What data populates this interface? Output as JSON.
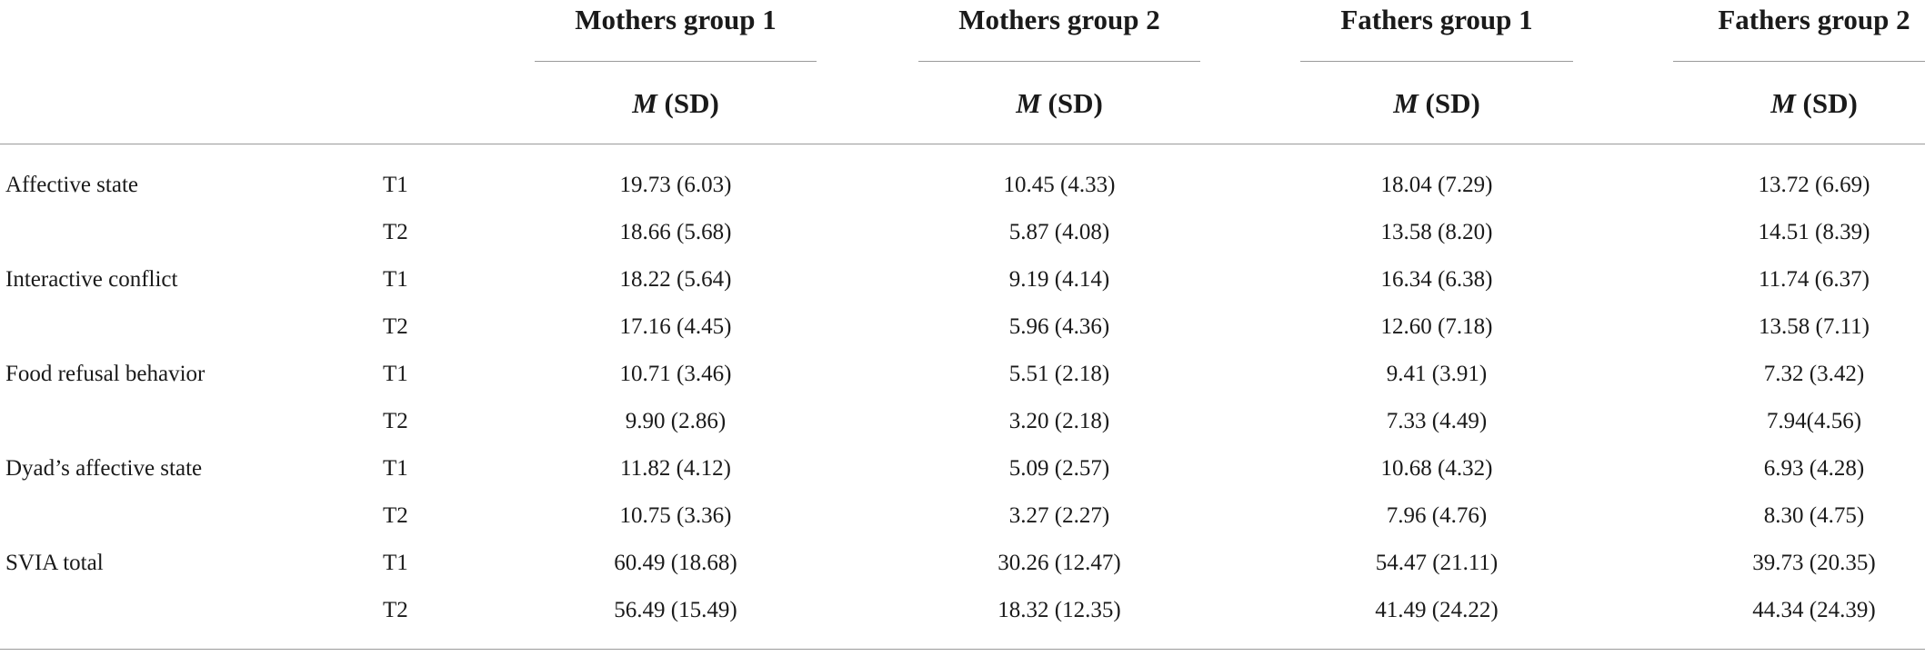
{
  "table": {
    "groups": [
      {
        "title": "Mothers group 1",
        "stat_italic": "M",
        "stat_rest": " (SD)"
      },
      {
        "title": "Mothers group 2",
        "stat_italic": "M",
        "stat_rest": " (SD)"
      },
      {
        "title": "Fathers group 1",
        "stat_italic": "M",
        "stat_rest": " (SD)"
      },
      {
        "title": "Fathers group 2",
        "stat_italic": "M",
        "stat_rest": " (SD)"
      }
    ],
    "rows": [
      {
        "label": "Affective state",
        "time": "T1",
        "values": [
          "19.73 (6.03)",
          "10.45 (4.33)",
          "18.04 (7.29)",
          "13.72 (6.69)"
        ]
      },
      {
        "label": "",
        "time": "T2",
        "values": [
          "18.66 (5.68)",
          "5.87 (4.08)",
          "13.58 (8.20)",
          "14.51 (8.39)"
        ]
      },
      {
        "label": "Interactive conflict",
        "time": "T1",
        "values": [
          "18.22 (5.64)",
          "9.19 (4.14)",
          "16.34 (6.38)",
          "11.74 (6.37)"
        ]
      },
      {
        "label": "",
        "time": "T2",
        "values": [
          "17.16 (4.45)",
          "5.96 (4.36)",
          "12.60 (7.18)",
          "13.58 (7.11)"
        ]
      },
      {
        "label": "Food refusal behavior",
        "time": "T1",
        "values": [
          "10.71 (3.46)",
          "5.51 (2.18)",
          "9.41 (3.91)",
          "7.32 (3.42)"
        ]
      },
      {
        "label": "",
        "time": "T2",
        "values": [
          "9.90 (2.86)",
          "3.20 (2.18)",
          "7.33 (4.49)",
          "7.94(4.56)"
        ]
      },
      {
        "label": "Dyad’s affective state",
        "time": "T1",
        "values": [
          "11.82 (4.12)",
          "5.09 (2.57)",
          "10.68 (4.32)",
          "6.93 (4.28)"
        ]
      },
      {
        "label": "",
        "time": "T2",
        "values": [
          "10.75 (3.36)",
          "3.27 (2.27)",
          "7.96 (4.76)",
          "8.30 (4.75)"
        ]
      },
      {
        "label": "SVIA total",
        "time": "T1",
        "values": [
          "60.49 (18.68)",
          "30.26 (12.47)",
          "54.47 (21.11)",
          "39.73 (20.35)"
        ]
      },
      {
        "label": "",
        "time": "T2",
        "values": [
          "56.49 (15.49)",
          "18.32 (12.35)",
          "41.49 (24.22)",
          "44.34 (24.39)"
        ]
      }
    ]
  }
}
